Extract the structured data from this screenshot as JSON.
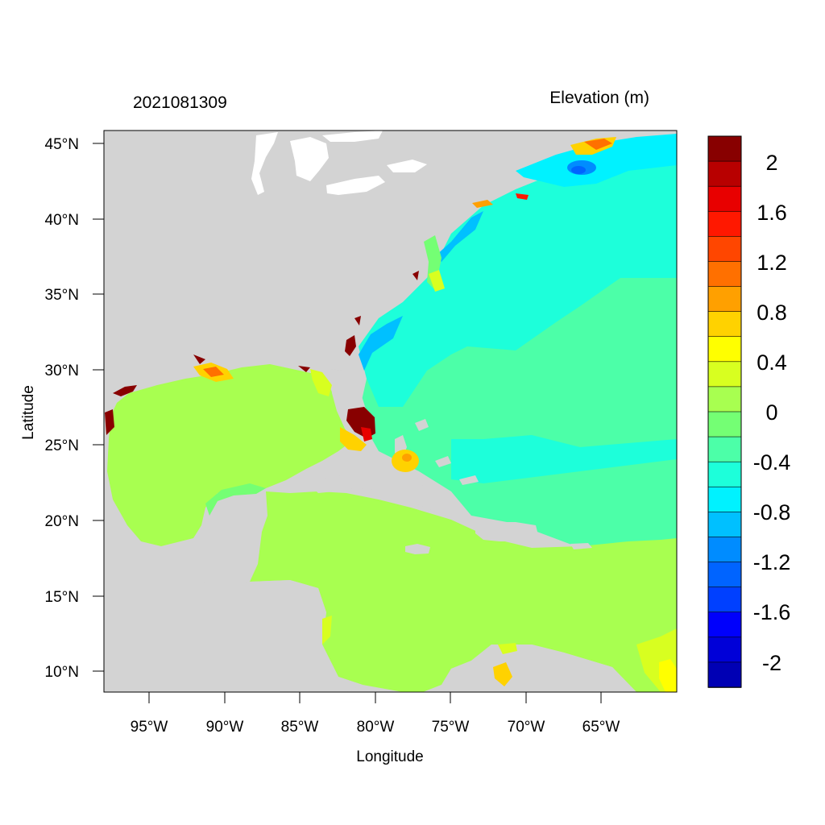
{
  "map": {
    "date_label": "2021081309",
    "variable_label": "Elevation (m)",
    "x_axis_title": "Longitude",
    "y_axis_title": "Latitude",
    "lon_range": [
      -98,
      -60
    ],
    "lat_range": [
      8.5,
      46
    ],
    "lon_ticks": [
      "95°W",
      "90°W",
      "85°W",
      "80°W",
      "75°W",
      "70°W",
      "65°W"
    ],
    "lat_ticks": [
      "45°N",
      "40°N",
      "35°N",
      "30°N",
      "25°N",
      "20°N",
      "15°N",
      "10°N"
    ]
  },
  "colorbar": {
    "levels": [
      -2.2,
      -2.0,
      -1.8,
      -1.6,
      -1.4,
      -1.2,
      -1.0,
      -0.8,
      -0.6,
      -0.4,
      -0.2,
      0.0,
      0.2,
      0.4,
      0.6,
      0.8,
      1.0,
      1.2,
      1.4,
      1.6,
      1.8,
      2.0,
      2.2
    ],
    "colors": [
      "#0000b4",
      "#0000d8",
      "#0000fc",
      "#0040ff",
      "#0064ff",
      "#008cff",
      "#00c0ff",
      "#00f2ff",
      "#1dffda",
      "#4cffa8",
      "#74ff74",
      "#a8ff50",
      "#d8ff20",
      "#ffff00",
      "#ffd200",
      "#ffa000",
      "#ff7000",
      "#ff4600",
      "#ff1800",
      "#e80000",
      "#b80000",
      "#880000"
    ],
    "labels": [
      "2",
      "1.6",
      "1.2",
      "0.8",
      "0.4",
      "0",
      "-0.4",
      "-0.8",
      "-1.2",
      "-1.6",
      "-2"
    ]
  },
  "colors": {
    "land": "#d3d3d3",
    "gulf_caribbean": "#a8ff50",
    "atlantic_outer": "#4cffa8",
    "atlantic_mid": "#1dffda",
    "coastal_low": "#00f2ff",
    "surge_high": "#880000"
  }
}
